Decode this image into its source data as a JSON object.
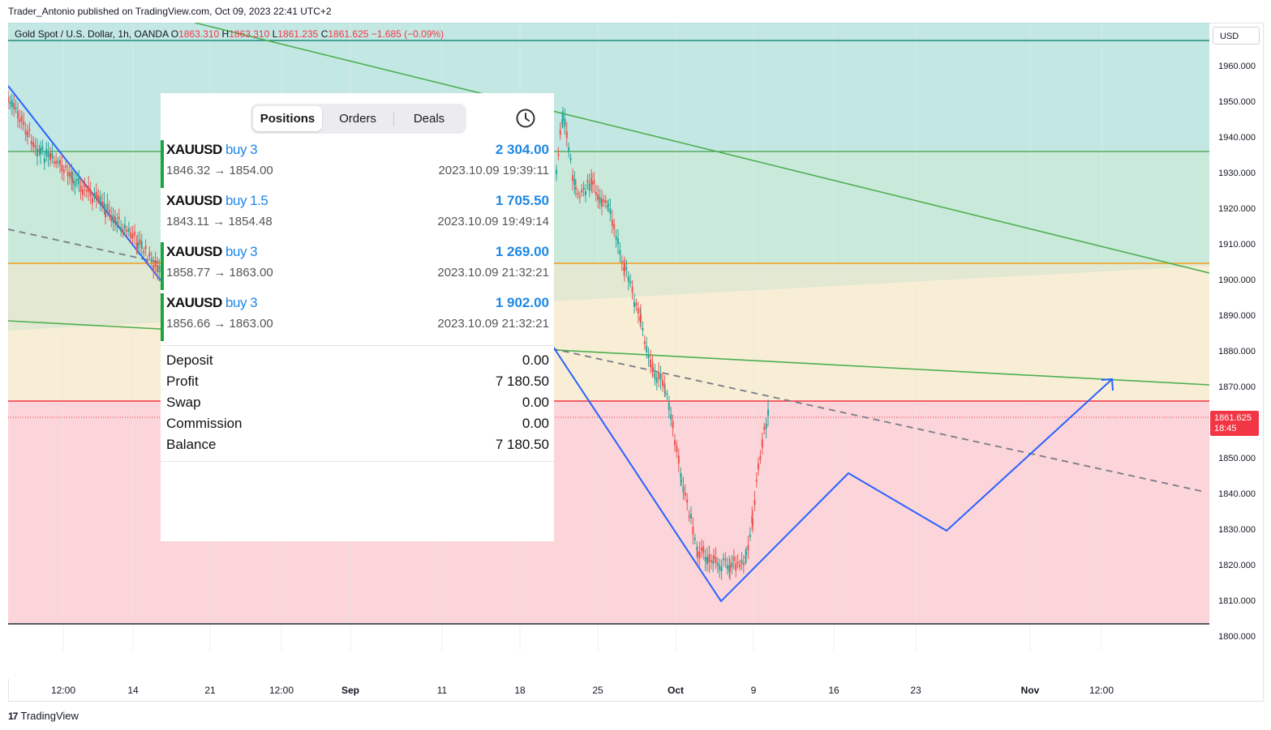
{
  "publisher": "Trader_Antonio published on TradingView.com, Oct 09, 2023 22:41 UTC+2",
  "symbol": {
    "name": "Gold Spot / U.S. Dollar, 1h, OANDA",
    "o_label": "O",
    "o": "1863.310",
    "h_label": "H",
    "h": "1863.310",
    "l_label": "L",
    "l": "1861.235",
    "c_label": "C",
    "c": "1861.625",
    "change": "−1.685 (−0.09%)"
  },
  "currency": "USD",
  "price_labels": [
    "1960.000",
    "1950.000",
    "1940.000",
    "1930.000",
    "1920.000",
    "1910.000",
    "1900.000",
    "1890.000",
    "1880.000",
    "1870.000",
    "1850.000",
    "1840.000",
    "1830.000",
    "1820.000",
    "1810.000",
    "1800.000"
  ],
  "last_price": {
    "price": "1861.625",
    "countdown": "18:45"
  },
  "time_labels": [
    "12:00",
    "14",
    "21",
    "12:00",
    "Sep",
    "11",
    "18",
    "25",
    "Oct",
    "9",
    "16",
    "23",
    "Nov",
    "12:00"
  ],
  "branding": "TradingView",
  "colors": {
    "up": "#26a69a",
    "down": "#ef5350",
    "pattern_line": "#2962ff",
    "trend_line": "#4caf50",
    "profit_blue": "#1e88e5",
    "position_bar": "#1aa53f"
  },
  "panel": {
    "tabs": [
      "Positions",
      "Orders",
      "Deals"
    ],
    "active_tab": "Positions",
    "history_icon": "clock-icon",
    "positions": [
      {
        "symbol": "XAUUSD",
        "side": "buy 3",
        "prices": "1846.32 → 1854.00",
        "profit": "2 304.00",
        "time": "2023.10.09 19:39:11"
      },
      {
        "symbol": "XAUUSD",
        "side": "buy 1.5",
        "prices": "1843.11 → 1854.48",
        "profit": "1 705.50",
        "time": "2023.10.09 19:49:14"
      },
      {
        "symbol": "XAUUSD",
        "side": "buy 3",
        "prices": "1858.77 → 1863.00",
        "profit": "1 269.00",
        "time": "2023.10.09 21:32:21"
      },
      {
        "symbol": "XAUUSD",
        "side": "buy 3",
        "prices": "1856.66 → 1863.00",
        "profit": "1 902.00",
        "time": "2023.10.09 21:32:21"
      }
    ],
    "summary": [
      {
        "label": "Deposit",
        "value": "0.00"
      },
      {
        "label": "Profit",
        "value": "7 180.50"
      },
      {
        "label": "Swap",
        "value": "0.00"
      },
      {
        "label": "Commission",
        "value": "0.00"
      },
      {
        "label": "Balance",
        "value": "7 180.50"
      }
    ]
  }
}
